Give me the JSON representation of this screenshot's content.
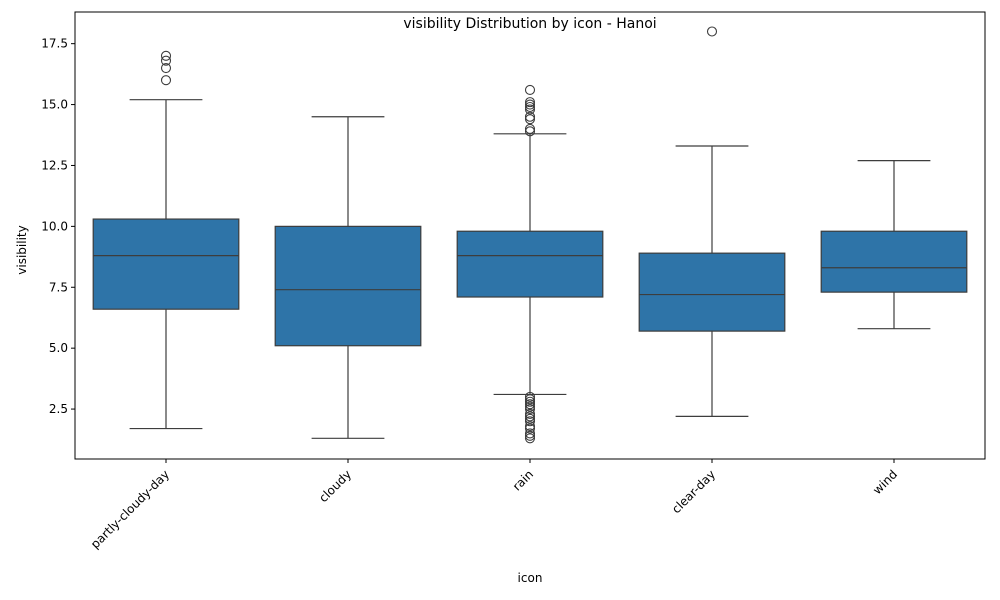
{
  "chart_data": {
    "type": "box",
    "title": "visibility Distribution by icon - Hanoi",
    "xlabel": "icon",
    "ylabel": "visibility",
    "ylim": [
      0.45,
      18.8
    ],
    "yticks": [
      "2.5",
      "5.0",
      "7.5",
      "10.0",
      "12.5",
      "15.0",
      "17.5"
    ],
    "grid": false,
    "color": "#2e74a8",
    "categories": [
      "partly-cloudy-day",
      "cloudy",
      "rain",
      "clear-day",
      "wind"
    ],
    "boxes": [
      {
        "category": "partly-cloudy-day",
        "whisker_low": 1.7,
        "q1": 6.6,
        "median": 8.8,
        "q3": 10.3,
        "whisker_high": 15.2,
        "outliers": [
          16.0,
          16.5,
          16.8,
          17.0
        ]
      },
      {
        "category": "cloudy",
        "whisker_low": 1.3,
        "q1": 5.1,
        "median": 7.4,
        "q3": 10.0,
        "whisker_high": 14.5,
        "outliers": []
      },
      {
        "category": "rain",
        "whisker_low": 3.1,
        "q1": 7.1,
        "median": 8.8,
        "q3": 9.8,
        "whisker_high": 13.8,
        "outliers": [
          1.3,
          1.4,
          1.5,
          1.7,
          1.8,
          2.0,
          2.1,
          2.2,
          2.3,
          2.5,
          2.6,
          2.7,
          2.8,
          2.9,
          3.0,
          13.9,
          14.0,
          14.4,
          14.5,
          14.8,
          14.9,
          15.0,
          15.1,
          15.6
        ]
      },
      {
        "category": "clear-day",
        "whisker_low": 2.2,
        "q1": 5.7,
        "median": 7.2,
        "q3": 8.9,
        "whisker_high": 13.3,
        "outliers": [
          18.0
        ]
      },
      {
        "category": "wind",
        "whisker_low": 5.8,
        "q1": 7.3,
        "median": 8.3,
        "q3": 9.8,
        "whisker_high": 12.7,
        "outliers": []
      }
    ]
  }
}
